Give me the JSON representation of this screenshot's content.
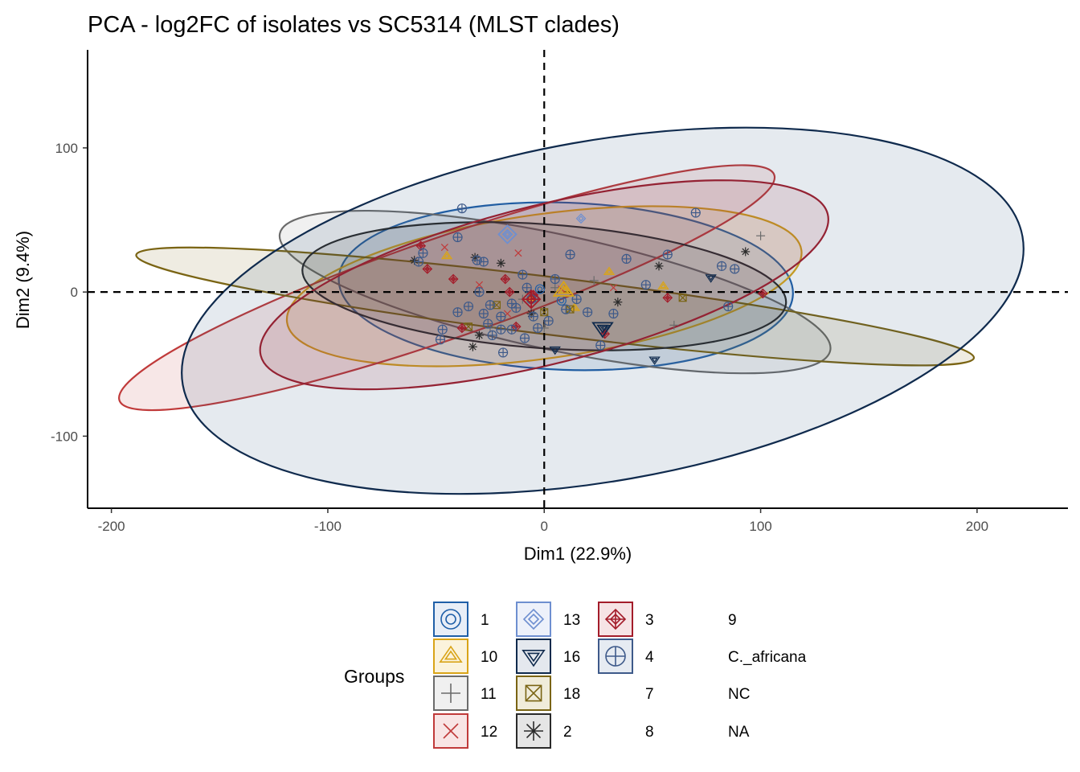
{
  "chart_data": {
    "type": "scatter",
    "title": "PCA - log2FC of isolates vs SC5314 (MLST clades)",
    "xlabel": "Dim1 (22.9%)",
    "ylabel": "Dim2 (9.4%)",
    "xlim": [
      -211,
      242
    ],
    "ylim": [
      -150,
      168
    ],
    "xticks": [
      -200,
      -100,
      0,
      100,
      200
    ],
    "yticks": [
      -100,
      0,
      100
    ],
    "reference_lines": {
      "x": 0,
      "y": 0,
      "style": "dashed"
    },
    "grid": false,
    "legend": {
      "title": "Groups",
      "position": "bottom",
      "columns": 4
    },
    "series": [
      {
        "name": "1",
        "color": "#1f5fa8",
        "marker": "double-circle",
        "points": [
          [
            -5,
            -4
          ],
          [
            -2,
            2
          ],
          [
            8,
            -6
          ]
        ],
        "ellipse": {
          "cx": 10,
          "cy": 4,
          "rx": 105,
          "ry": 58,
          "angle": 2,
          "fill": "#1f5fa8"
        }
      },
      {
        "name": "10",
        "color": "#d9a418",
        "marker": "double-triangle",
        "points": [
          [
            -45,
            25
          ],
          [
            10,
            1
          ],
          [
            30,
            14
          ],
          [
            55,
            4
          ],
          [
            -6,
            -4
          ],
          [
            14,
            -11
          ]
        ],
        "ellipse": {
          "cx": 0,
          "cy": 4,
          "rx": 120,
          "ry": 50,
          "angle": -8,
          "fill": "#d9a418"
        }
      },
      {
        "name": "11",
        "color": "#6b6b6b",
        "marker": "plus",
        "points": [
          [
            -38,
            -25
          ],
          [
            -10,
            -5
          ],
          [
            0,
            -25
          ],
          [
            60,
            -23
          ],
          [
            100,
            39
          ],
          [
            -25,
            -25
          ],
          [
            5,
            3
          ],
          [
            23,
            8
          ]
        ],
        "ellipse": {
          "cx": 5,
          "cy": 0,
          "rx": 130,
          "ry": 40,
          "angle": 12,
          "fill": "#808080"
        }
      },
      {
        "name": "12",
        "color": "#c03a3a",
        "marker": "cross",
        "points": [
          [
            -46,
            31
          ],
          [
            -17,
            -15
          ],
          [
            -12,
            27
          ],
          [
            32,
            3
          ],
          [
            8,
            2
          ],
          [
            -30,
            5
          ]
        ],
        "ellipse": {
          "cx": -45,
          "cy": 3,
          "rx": 160,
          "ry": 35,
          "angle": -19,
          "fill": "#c03a3a"
        }
      },
      {
        "name": "13",
        "color": "#6e8fd0",
        "marker": "double-diamond",
        "points": [
          [
            -17,
            40
          ],
          [
            17,
            51
          ]
        ],
        "ellipse": null
      },
      {
        "name": "16",
        "color": "#0f2a4d",
        "marker": "double-triangle-down",
        "points": [
          [
            28,
            -25
          ],
          [
            77,
            10
          ],
          [
            51,
            -47
          ],
          [
            5,
            -40
          ]
        ],
        "ellipse": null
      },
      {
        "name": "18",
        "color": "#7a6413",
        "marker": "square-cross",
        "points": [
          [
            -35,
            -24
          ],
          [
            -22,
            -9
          ],
          [
            0,
            -14
          ],
          [
            12,
            -12
          ],
          [
            64,
            -4
          ]
        ],
        "ellipse": {
          "cx": 5,
          "cy": -10,
          "rx": 195,
          "ry": 20,
          "angle": 7,
          "fill": "#7a6413"
        }
      },
      {
        "name": "2",
        "color": "#2a2a2a",
        "marker": "asterisk",
        "points": [
          [
            -60,
            22
          ],
          [
            -32,
            24
          ],
          [
            -20,
            20
          ],
          [
            -33,
            -38
          ],
          [
            53,
            18
          ],
          [
            93,
            28
          ],
          [
            34,
            -7
          ],
          [
            -6,
            -15
          ],
          [
            -30,
            -30
          ]
        ],
        "ellipse": {
          "cx": 0,
          "cy": 4,
          "rx": 112,
          "ry": 43,
          "angle": 4,
          "fill": "#2a2a2a"
        }
      },
      {
        "name": "3",
        "color": "#a31c2a",
        "marker": "square-diamond",
        "points": [
          [
            -57,
            32
          ],
          [
            -54,
            16
          ],
          [
            -42,
            9
          ],
          [
            -18,
            9
          ],
          [
            -16,
            0
          ],
          [
            -5,
            -2
          ],
          [
            28,
            -29
          ],
          [
            57,
            -4
          ],
          [
            101,
            -1
          ],
          [
            -38,
            -25
          ],
          [
            -13,
            -24
          ]
        ],
        "ellipse": {
          "cx": 0,
          "cy": 5,
          "rx": 135,
          "ry": 55,
          "angle": -14,
          "fill": "#a31c2a"
        }
      },
      {
        "name": "4",
        "color": "#3e5a8a",
        "marker": "circle-plus",
        "points": [
          [
            -58,
            21
          ],
          [
            -56,
            27
          ],
          [
            -40,
            38
          ],
          [
            -31,
            22
          ],
          [
            -28,
            21
          ],
          [
            -20,
            -26
          ],
          [
            -10,
            12
          ],
          [
            -6,
            -5
          ],
          [
            5,
            9
          ],
          [
            12,
            26
          ],
          [
            20,
            -14
          ],
          [
            26,
            -37
          ],
          [
            38,
            23
          ],
          [
            47,
            5
          ],
          [
            57,
            26
          ],
          [
            70,
            55
          ],
          [
            82,
            18
          ],
          [
            88,
            16
          ],
          [
            -48,
            -33
          ],
          [
            -47,
            -26
          ],
          [
            -35,
            -10
          ],
          [
            -28,
            -15
          ],
          [
            -24,
            -30
          ],
          [
            -19,
            -42
          ],
          [
            -13,
            -11
          ],
          [
            -9,
            -32
          ],
          [
            -3,
            -25
          ],
          [
            10,
            -12
          ],
          [
            2,
            -20
          ],
          [
            -30,
            0
          ],
          [
            -25,
            -9
          ],
          [
            -15,
            -8
          ],
          [
            -8,
            3
          ],
          [
            15,
            -5
          ],
          [
            32,
            -15
          ],
          [
            -20,
            -17
          ],
          [
            -15,
            -26
          ],
          [
            -5,
            -17
          ],
          [
            -38,
            58
          ],
          [
            85,
            -10
          ],
          [
            -26,
            -22
          ],
          [
            -40,
            -14
          ]
        ],
        "ellipse": {
          "cx": 27,
          "cy": -13,
          "rx": 197,
          "ry": 118,
          "angle": -10,
          "fill": "#2d4f79",
          "stroke": "#0f2a4d"
        }
      },
      {
        "name": "7",
        "color": "#000000",
        "marker": "none",
        "points": [],
        "ellipse": null
      },
      {
        "name": "8",
        "color": "#000000",
        "marker": "none",
        "points": [],
        "ellipse": null
      },
      {
        "name": "9",
        "color": "#000000",
        "marker": "none",
        "points": [],
        "ellipse": null
      },
      {
        "name": "C._africana",
        "color": "#000000",
        "marker": "none",
        "points": [],
        "ellipse": null
      },
      {
        "name": "NC",
        "color": "#000000",
        "marker": "none",
        "points": [],
        "ellipse": null
      },
      {
        "name": "NA",
        "color": "#000000",
        "marker": "none",
        "points": [],
        "ellipse": null
      }
    ],
    "centroids": [
      {
        "group": "13",
        "x": -17,
        "y": 40
      },
      {
        "group": "10",
        "x": 9,
        "y": 1
      },
      {
        "group": "16",
        "x": 27,
        "y": -25
      },
      {
        "group": "3",
        "x": -6,
        "y": -5
      }
    ]
  },
  "legend_items": [
    {
      "label": "1",
      "symbol": "double-circle",
      "color": "#1f5fa8",
      "fill": "#e8eef7"
    },
    {
      "label": "10",
      "symbol": "double-triangle",
      "color": "#d9a418",
      "fill": "#fbf3dc"
    },
    {
      "label": "11",
      "symbol": "plus",
      "color": "#6b6b6b",
      "fill": "#f0f0f0"
    },
    {
      "label": "12",
      "symbol": "cross",
      "color": "#c03a3a",
      "fill": "#f8e5e5"
    },
    {
      "label": "13",
      "symbol": "double-diamond",
      "color": "#6e8fd0",
      "fill": "#edf1fa"
    },
    {
      "label": "16",
      "symbol": "double-triangle-down",
      "color": "#0f2a4d",
      "fill": "#e4e8ee"
    },
    {
      "label": "18",
      "symbol": "square-cross",
      "color": "#7a6413",
      "fill": "#f0ecda"
    },
    {
      "label": "2",
      "symbol": "asterisk",
      "color": "#2a2a2a",
      "fill": "#e5e5e5"
    },
    {
      "label": "3",
      "symbol": "square-diamond",
      "color": "#a31c2a",
      "fill": "#f6e3e5"
    },
    {
      "label": "4",
      "symbol": "circle-plus",
      "color": "#3e5a8a",
      "fill": "#e6ebf2"
    },
    {
      "label": "7",
      "symbol": "none",
      "color": "#000000",
      "fill": "none"
    },
    {
      "label": "8",
      "symbol": "none",
      "color": "#000000",
      "fill": "none"
    },
    {
      "label": "9",
      "symbol": "none",
      "color": "#000000",
      "fill": "none"
    },
    {
      "label": "C._africana",
      "symbol": "none",
      "color": "#000000",
      "fill": "none"
    },
    {
      "label": "NC",
      "symbol": "none",
      "color": "#000000",
      "fill": "none"
    },
    {
      "label": "NA",
      "symbol": "none",
      "color": "#000000",
      "fill": "none"
    }
  ]
}
